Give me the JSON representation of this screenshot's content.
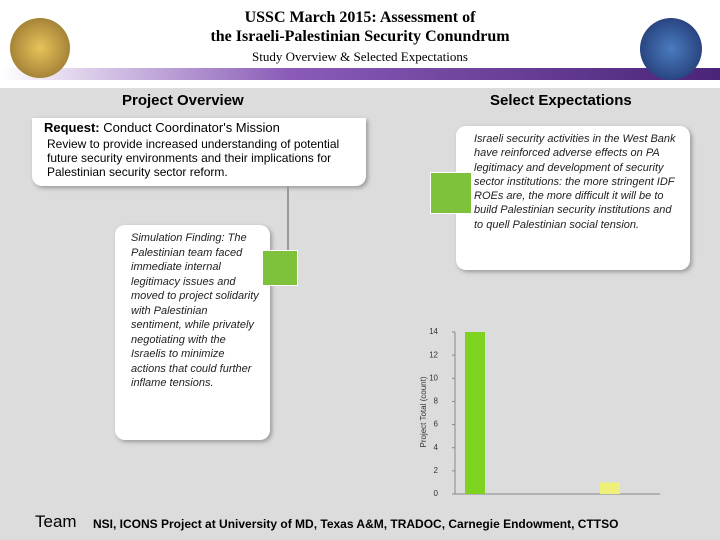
{
  "header": {
    "title_line1": "USSC March 2015: Assessment of",
    "title_line2": "the Israeli-Palestinian Security Conundrum",
    "subtitle": "Study Overview & Selected Expectations"
  },
  "left": {
    "heading": "Project Overview",
    "request_label": "Request:",
    "request_title": "Conduct Coordinator's Mission",
    "request_text": "Review to provide increased understanding of potential future security environments and their implications for Palestinian security sector reform.",
    "finding": "Simulation Finding: The Palestinian team faced immediate internal legitimacy issues and moved to project solidarity with Palestinian sentiment, while privately negotiating with the Israelis to minimize actions that could further inflame tensions."
  },
  "right": {
    "heading": "Select Expectations",
    "expectation": "Israeli security activities in the West Bank have reinforced adverse effects on PA legitimacy and development of security sector institutions: the more stringent IDF ROEs are, the more difficult it will be to build Palestinian security institutions and to quell Palestinian social tension."
  },
  "chart_data": {
    "type": "bar",
    "y_label": "Project Total (count)",
    "categories": [
      null,
      null
    ],
    "series": [
      {
        "colors": [
          "#7ed321",
          "#eef07a"
        ],
        "values": [
          14,
          1
        ]
      }
    ],
    "ylim": [
      0,
      14
    ],
    "yticks": [
      0,
      2,
      4,
      6,
      8,
      10,
      12,
      14
    ]
  },
  "footer": {
    "label": "Team",
    "text": "NSI, ICONS Project at University of MD, Texas A&M, TRADOC, Carnegie Endowment, CTTSO"
  }
}
